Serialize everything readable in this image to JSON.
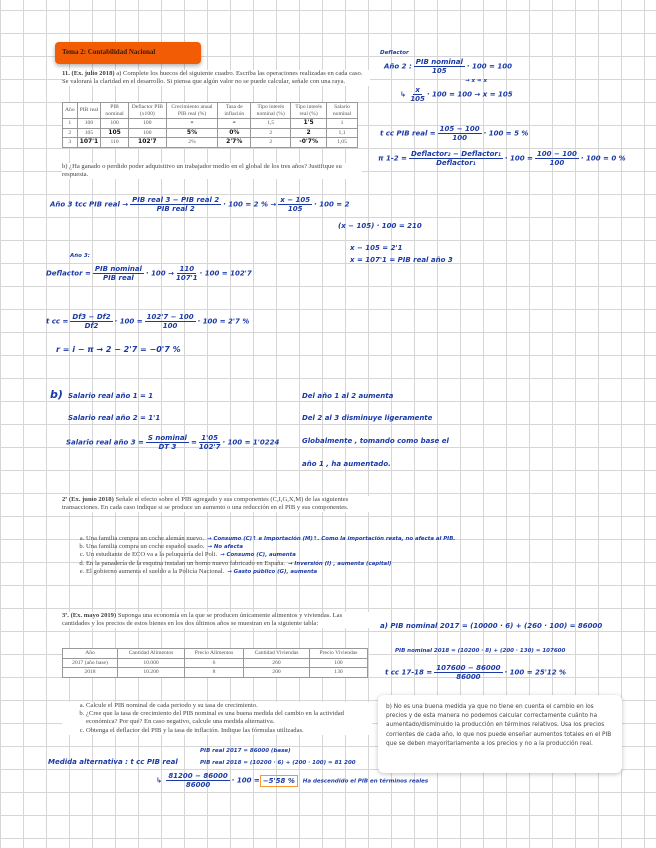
{
  "title": "Tema 2: Contabilidad Nacional",
  "q1": {
    "heading": "11. (Ex. julio 2018)",
    "text": "a) Complete los huecos del siguiente cuadro. Escriba las operaciones realizadas en cada caso. Se valorará la claridad en el desarrollo. Si piensa que algún valor no se puede calcular, señale con una raya.",
    "table": {
      "headers": [
        "Año",
        "PIB real",
        "PIB nominal",
        "Deflactor PIB (x100)",
        "Crecimiento anual PIB real (%)",
        "Tasa de inflación",
        "Tipo interés nominal (%)",
        "Tipo interés real (%)",
        "Salario nominal"
      ],
      "rows": [
        [
          "1",
          "100",
          "100",
          "100",
          "–",
          "–",
          "1,5",
          "1'5",
          "1"
        ],
        [
          "2",
          "105",
          "105",
          "100",
          "5%",
          "0%",
          "2",
          "2",
          "1,1"
        ],
        [
          "3",
          "107'1",
          "110",
          "102'7",
          "2%",
          "2'7%",
          "2",
          "-0'7%",
          "1,05"
        ]
      ]
    },
    "b": "b) ¿Ha ganado o perdido poder adquisitivo un trabajador medio en el global de los tres años? Justifique su respuesta."
  },
  "notes_top": {
    "label": "Deflactor",
    "l1a": "Año 2 :",
    "l1num": "PIB nominal",
    "l1den": "105",
    "l1b": "· 100 = 100",
    "l1c": "→ x = x",
    "l2num": "x",
    "l2den": "105",
    "l2b": "· 100 = 100 → x = 105",
    "l3a": "t cc PIB real =",
    "l3num": "105 − 100",
    "l3den": "100",
    "l3b": "· 100 = 5 %",
    "l4a": "π 1-2 =",
    "l4num": "Deflactor₂ − Deflactor₁",
    "l4den": "Deflactor₁",
    "l4b": "· 100 =",
    "l4num2": "100 − 100",
    "l4den2": "100",
    "l4c": "· 100 = 0 %"
  },
  "notes_mid": {
    "a1": "Año 3  tcc PIB real →",
    "a1num": "PIB real 3 − PIB real 2",
    "a1den": "PIB real 2",
    "a1b": "· 100 = 2 %  →",
    "a1num2": "x − 105",
    "a1den2": "105",
    "a1c": "· 100 = 2",
    "a2": "(x − 105) · 100 = 210",
    "a3": "x − 105 = 2'1",
    "a4": "x = 107'1 = PIB real año 3",
    "d0": "Año 3:",
    "d1": "Deflactor =",
    "d1num": "PIB nominal",
    "d1den": "PIB real",
    "d1b": "· 100 →",
    "d1num2": "110",
    "d1den2": "107'1",
    "d1c": "· 100 = 102'7",
    "t1": "t cc =",
    "t1num": "Df3 − Df2",
    "t1den": "Df2",
    "t1b": "· 100 =",
    "t1num2": "102'7 − 100",
    "t1den2": "100",
    "t1c": "· 100 = 2'7 %",
    "r1": "r = i − π   →  2 − 2'7 = −0'7 %"
  },
  "notes_b": {
    "label": "b)",
    "s1": "Salario real año 1 = 1",
    "s2": "Salario real año 2 = 1'1",
    "s3": "Salario real año 3 =",
    "s3num": "S nominal",
    "s3den": "DT 3",
    "s3b": "=",
    "s3num2": "1'05",
    "s3den2": "102'7",
    "s3c": "· 100 = 1'0224",
    "c1": "Del año 1 al 2 aumenta",
    "c2": "Del 2 al 3 disminuye ligeramente",
    "c3": "Globalmente , tomando como base el",
    "c4": "año 1 , ha aumentado."
  },
  "q2": {
    "heading": "2ª (Ex. junio 2018)",
    "text": "Señale el efecto sobre el PIB agregado y sus componentes (C,I,G,X,M) de las siguientes transacciones. En cada caso indique si se produce un aumento o una reducción en el PIB y sus componentes.",
    "items": [
      {
        "text": "Una familia compra un coche alemán nuevo.",
        "note": "→ Consumo (C)↑ e Importación (M)↑. Como la importación resta, no afecta al PIB."
      },
      {
        "text": "Una familia compra un coche español usado.",
        "note": "→ No afecta"
      },
      {
        "text": "Un estudiante de ECO va a la peluquería del Poli.",
        "note": "→ Consumo (C), aumenta"
      },
      {
        "text": "En la panadería de la esquina instalan un horno nuevo fabricado en España.",
        "note": "→ Inversión (I) , aumenta (capital)"
      },
      {
        "text": "El gobierno aumenta el sueldo a la Policía Nacional.",
        "note": "→ Gasto público (G), aumenta"
      }
    ]
  },
  "q3": {
    "heading": "3ª. (Ex. mayo 2019)",
    "text": "Suponga una economía en la que se producen únicamente alimentos y viviendas. Las cantidades y los precios de estos bienes en los dos últimos años se muestran en la siguiente tabla:",
    "table": {
      "headers": [
        "Año",
        "Cantidad Alimentos",
        "Precio Alimentos",
        "Cantidad Viviendas",
        "Precio Viviendas"
      ],
      "rows": [
        [
          "2017 (año base)",
          "10.000",
          "6",
          "260",
          "100"
        ],
        [
          "2018",
          "10.200",
          "8",
          "200",
          "130"
        ]
      ]
    },
    "items": [
      "Calcule el PIB nominal de cada periodo y su tasa de crecimiento.",
      "¿Cree que la tasa de crecimiento del PIB nominal es una buena medida del cambio en la actividad económica? Por qué? En caso negativo, calcule una medida alternativa.",
      "Obtenga el deflactor del PIB y la tasa de inflación. Indique las fórmulas utilizadas."
    ]
  },
  "notes_q3": {
    "a1": "a) PIB nominal 2017 = (10000 · 6) + (260 · 100) = 86000",
    "a2": "PIB nominal 2018 = (10200 · 8) + (200 · 130) = 107600",
    "a3": "t cc 17-18 =",
    "a3num": "107600 − 86000",
    "a3den": "86000",
    "a3b": "· 100 = 25'12 %",
    "box": "b) No es una buena medida ya que no tiene en cuenta el cambio en los precios y de esta manera no podemos calcular correctamente cuánto ha aumentado/disminuido la producción en términos relativos. Usa los precios corrientes de cada año, lo que nos puede enseñar aumentos totales en el PIB que se deben mayoritariamente a los precios y no a la producción real.",
    "m0": "PIB real 2017 = 86000 (base)",
    "m1": "Medida alternativa : t cc PIB real",
    "m2": "PIB real 2018 = (10200 · 6) + (200 · 100) = 81 200",
    "m3num": "81200 − 86000",
    "m3den": "86000",
    "m3b": "· 100 =",
    "m3hl": "−5'58 %",
    "m3c": "Ha descendido el PIB en términos reales"
  }
}
